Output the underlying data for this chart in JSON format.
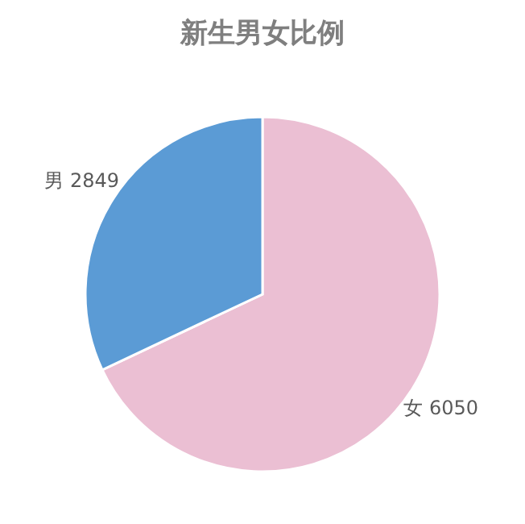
{
  "chart_data": {
    "type": "pie",
    "title": "新生男女比例",
    "categories": [
      "女",
      "男"
    ],
    "values": [
      6050,
      2849
    ],
    "colors": [
      "#ebbfd3",
      "#5b9bd5"
    ],
    "data_labels": true,
    "legend": false
  }
}
